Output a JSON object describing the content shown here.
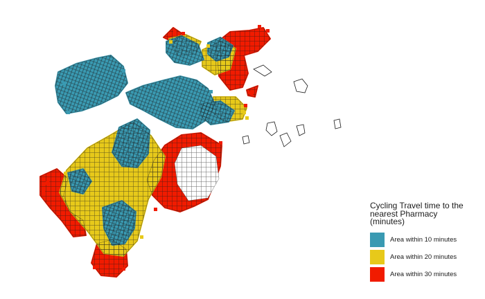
{
  "legend": {
    "title": "Cycling Travel time to the nearest Pharmacy (minutes)",
    "items": [
      {
        "label": "Area within 10 minutes",
        "color": "#3a9ab2"
      },
      {
        "label": "Area within 20 minutes",
        "color": "#e7c91a"
      },
      {
        "label": "Area within 30 minutes",
        "color": "#f11b00"
      }
    ]
  },
  "colors": {
    "street_lines": "#1a1a1a",
    "background": "#ffffff"
  }
}
